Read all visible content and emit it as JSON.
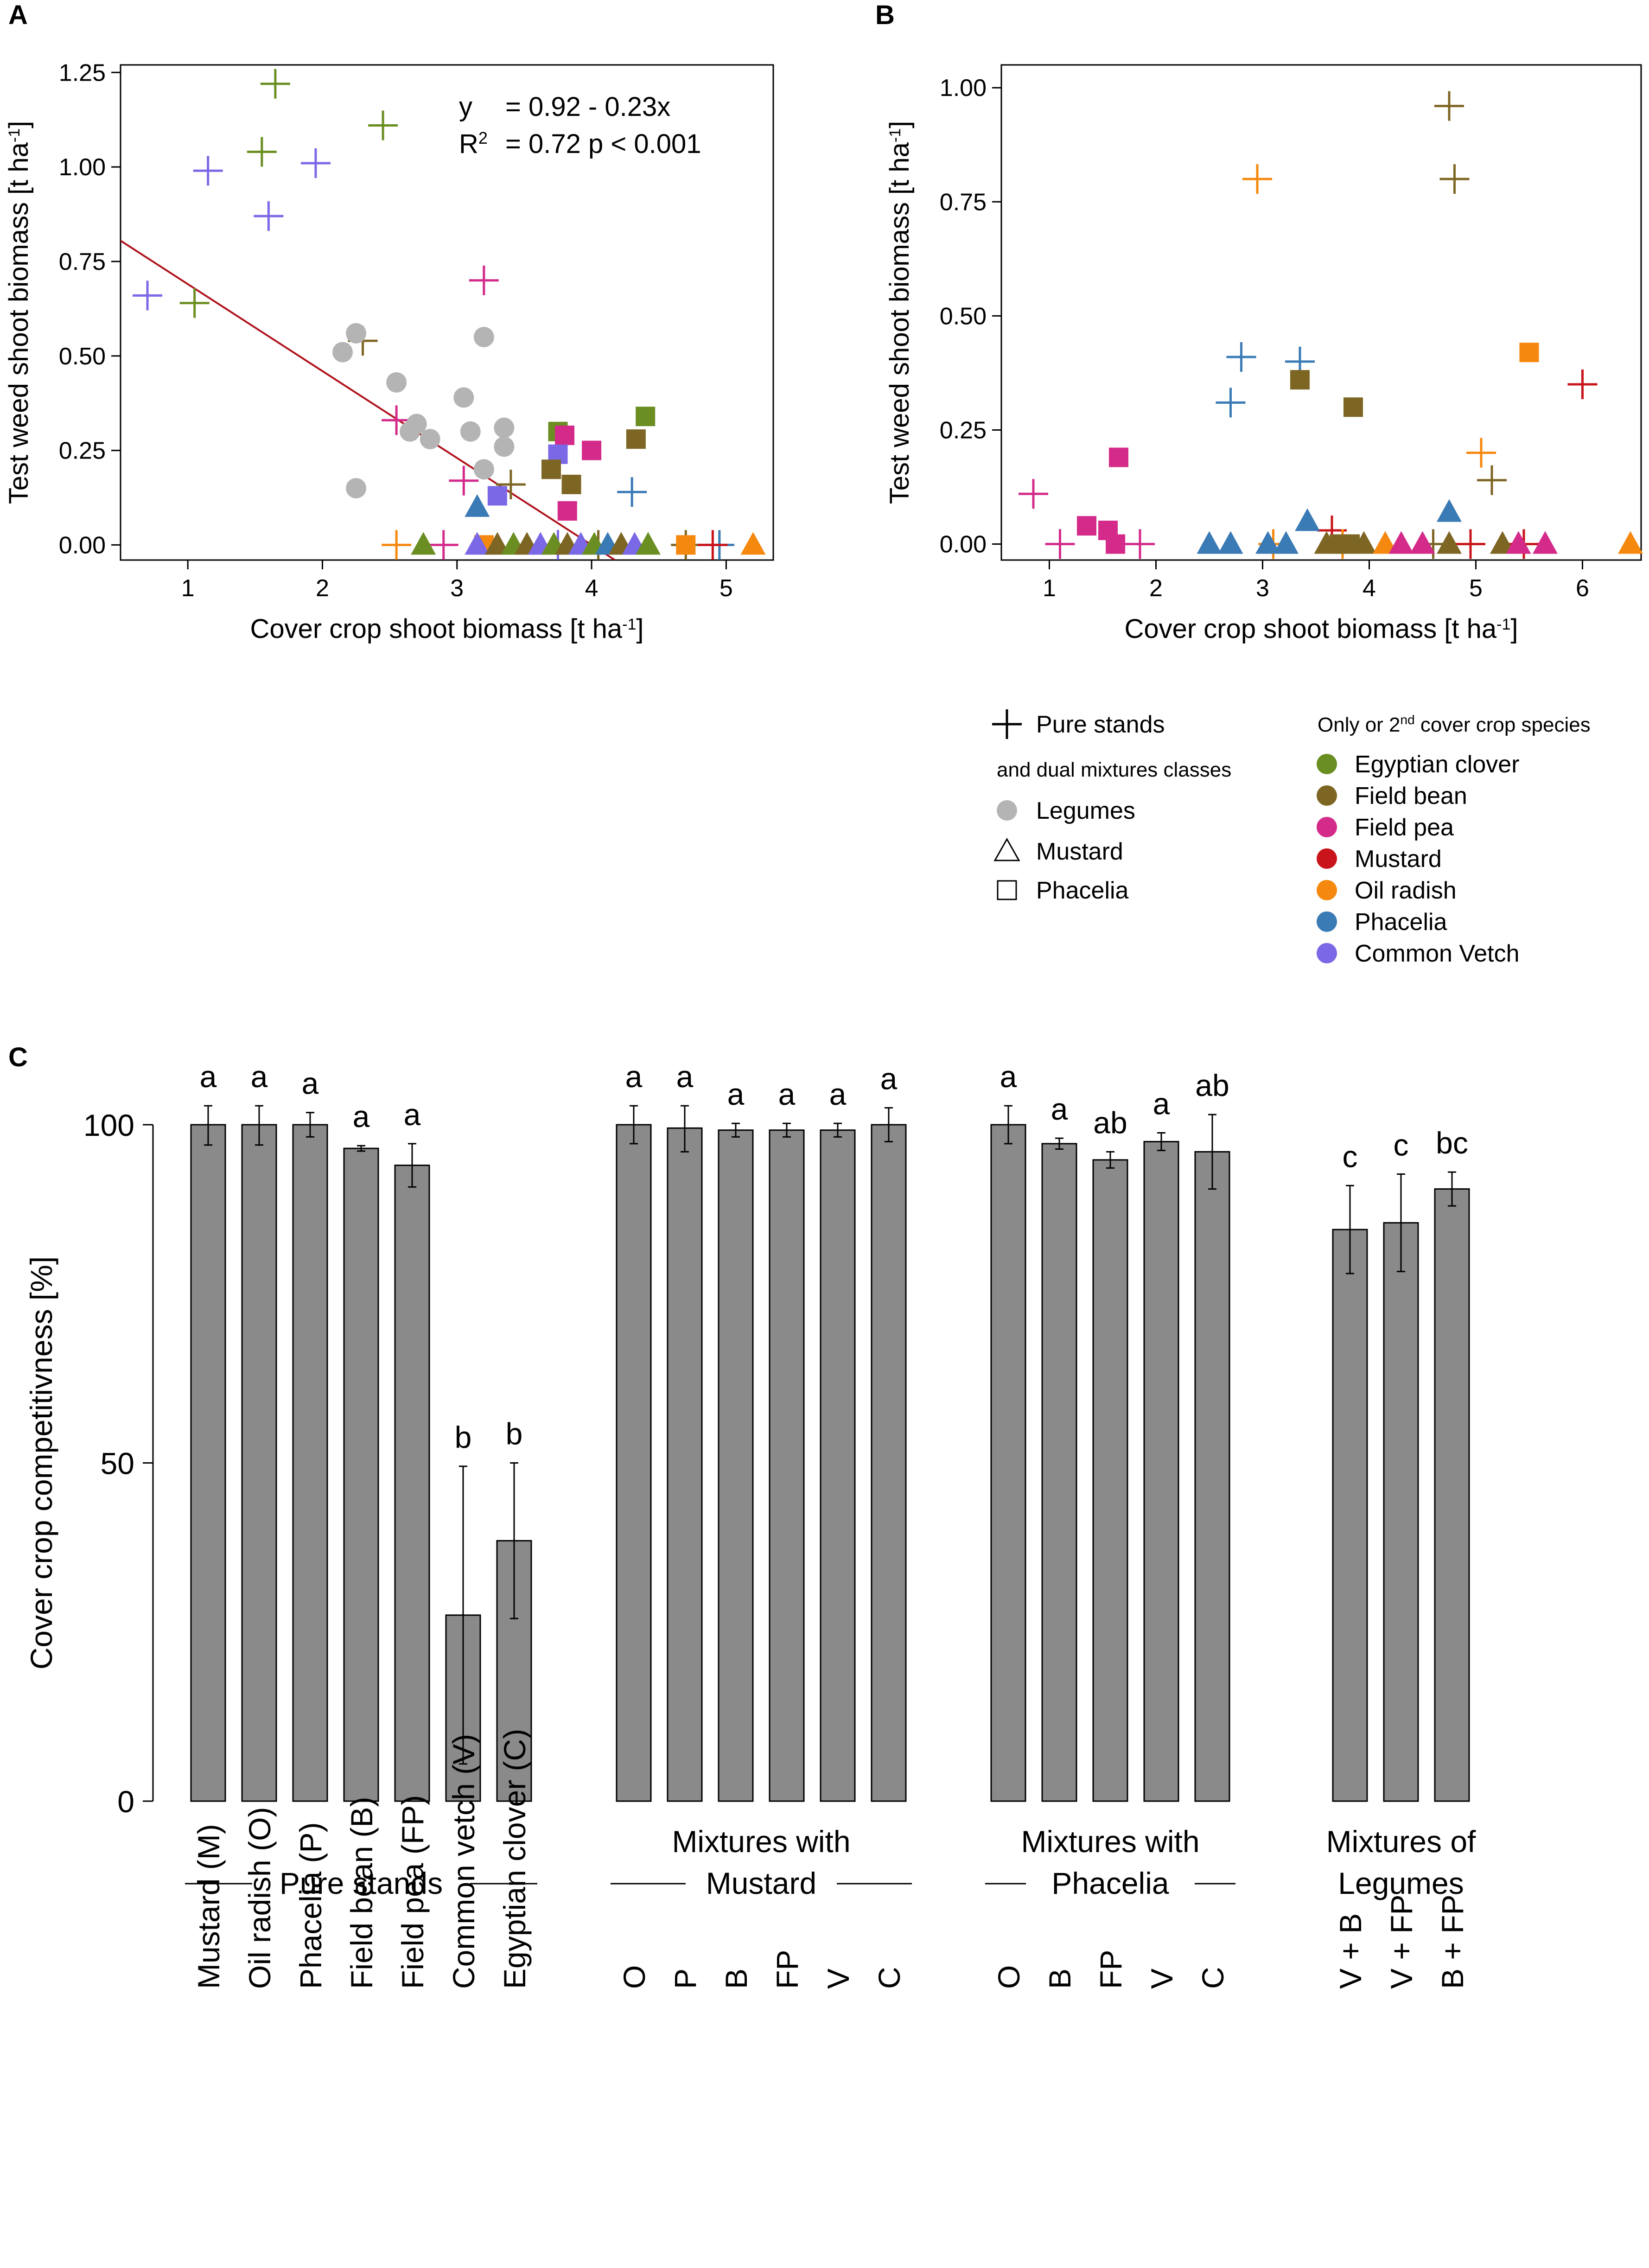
{
  "colors": {
    "Egyptian clover": "#6b8e23",
    "Field bean": "#7d6624",
    "Field pea": "#d42a8a",
    "Mustard": "#c8141a",
    "Oil radish": "#f5880f",
    "Phacelia": "#3a7ab5",
    "Common Vetch": "#7a68e6",
    "Legumes": "#b4b4b4",
    "regression": "#b0141e",
    "bar": "#8a8a8a"
  },
  "legend": {
    "class_items": [
      {
        "symbol": "plus",
        "label": "Pure stands"
      },
      {
        "symbol": "none",
        "label": "and dual mixtures classes"
      },
      {
        "symbol": "circle",
        "label": "Legumes"
      },
      {
        "symbol": "triangle",
        "label": "Mustard"
      },
      {
        "symbol": "square",
        "label": "Phacelia"
      }
    ],
    "species_header": {
      "pre": "Only or 2",
      "sup": "nd",
      "post": " cover crop species"
    },
    "species_items": [
      "Egyptian clover",
      "Field bean",
      "Field pea",
      "Mustard",
      "Oil radish",
      "Phacelia",
      "Common Vetch"
    ]
  },
  "chart_data": [
    {
      "panel": "A",
      "type": "scatter",
      "xlabel": {
        "main": "Cover crop shoot biomass [t ha",
        "sup": "-1",
        "close": "]"
      },
      "ylabel": {
        "main": "Test weed shoot biomass [t ha",
        "sup": "-1",
        "close": "]"
      },
      "xlim": [
        0.5,
        5.35
      ],
      "ylim": [
        -0.04,
        1.27
      ],
      "xticks": [
        1,
        2,
        3,
        4,
        5
      ],
      "yticks": [
        0,
        0.25,
        0.5,
        0.75,
        1,
        1.25
      ],
      "ytick_labels": [
        "0.00",
        "0.25",
        "0.50",
        "0.75",
        "1.00",
        "1.25"
      ],
      "regression": {
        "intercept": 0.92,
        "slope": -0.23,
        "equation_line1": {
          "y": "y",
          "rhs": "= 0.92 - 0.23x"
        },
        "equation_line2": {
          "r": "R",
          "sup": "2",
          "rhs": "= 0.72 p < 0.001"
        }
      },
      "points": [
        {
          "x": 1.65,
          "y": 1.22,
          "shape": "plus",
          "color": "Egyptian clover"
        },
        {
          "x": 1.55,
          "y": 1.04,
          "shape": "plus",
          "color": "Egyptian clover"
        },
        {
          "x": 2.45,
          "y": 1.11,
          "shape": "plus",
          "color": "Egyptian clover"
        },
        {
          "x": 1.05,
          "y": 0.64,
          "shape": "plus",
          "color": "Egyptian clover"
        },
        {
          "x": 1.15,
          "y": 0.99,
          "shape": "plus",
          "color": "Common Vetch"
        },
        {
          "x": 1.95,
          "y": 1.01,
          "shape": "plus",
          "color": "Common Vetch"
        },
        {
          "x": 1.6,
          "y": 0.87,
          "shape": "plus",
          "color": "Common Vetch"
        },
        {
          "x": 0.7,
          "y": 0.66,
          "shape": "plus",
          "color": "Common Vetch"
        },
        {
          "x": 3.2,
          "y": 0.7,
          "shape": "plus",
          "color": "Field pea"
        },
        {
          "x": 2.55,
          "y": 0.33,
          "shape": "plus",
          "color": "Field pea"
        },
        {
          "x": 3.05,
          "y": 0.17,
          "shape": "plus",
          "color": "Field pea"
        },
        {
          "x": 2.3,
          "y": 0.54,
          "shape": "plus",
          "color": "Field bean"
        },
        {
          "x": 3.4,
          "y": 0.16,
          "shape": "plus",
          "color": "Field bean"
        },
        {
          "x": 4.3,
          "y": 0.14,
          "shape": "plus",
          "color": "Phacelia"
        },
        {
          "x": 4.95,
          "y": 0.0,
          "shape": "plus",
          "color": "Phacelia"
        },
        {
          "x": 2.55,
          "y": 0.0,
          "shape": "plus",
          "color": "Oil radish"
        },
        {
          "x": 2.9,
          "y": 0.0,
          "shape": "plus",
          "color": "Field pea"
        },
        {
          "x": 3.75,
          "y": 0.0,
          "shape": "plus",
          "color": "Common Vetch"
        },
        {
          "x": 4.05,
          "y": 0.0,
          "shape": "plus",
          "color": "Field bean"
        },
        {
          "x": 4.7,
          "y": 0.0,
          "shape": "plus",
          "color": "Field bean"
        },
        {
          "x": 4.9,
          "y": 0.0,
          "shape": "plus",
          "color": "Mustard"
        },
        {
          "x": 2.15,
          "y": 0.51,
          "shape": "circle",
          "color": "Legumes"
        },
        {
          "x": 2.25,
          "y": 0.56,
          "shape": "circle",
          "color": "Legumes"
        },
        {
          "x": 2.25,
          "y": 0.15,
          "shape": "circle",
          "color": "Legumes"
        },
        {
          "x": 2.55,
          "y": 0.43,
          "shape": "circle",
          "color": "Legumes"
        },
        {
          "x": 2.65,
          "y": 0.3,
          "shape": "circle",
          "color": "Legumes"
        },
        {
          "x": 2.7,
          "y": 0.32,
          "shape": "circle",
          "color": "Legumes"
        },
        {
          "x": 2.8,
          "y": 0.28,
          "shape": "circle",
          "color": "Legumes"
        },
        {
          "x": 3.05,
          "y": 0.39,
          "shape": "circle",
          "color": "Legumes"
        },
        {
          "x": 3.1,
          "y": 0.3,
          "shape": "circle",
          "color": "Legumes"
        },
        {
          "x": 3.2,
          "y": 0.55,
          "shape": "circle",
          "color": "Legumes"
        },
        {
          "x": 3.2,
          "y": 0.2,
          "shape": "circle",
          "color": "Legumes"
        },
        {
          "x": 3.35,
          "y": 0.31,
          "shape": "circle",
          "color": "Legumes"
        },
        {
          "x": 3.35,
          "y": 0.26,
          "shape": "circle",
          "color": "Legumes"
        },
        {
          "x": 3.75,
          "y": 0.3,
          "shape": "square",
          "color": "Egyptian clover"
        },
        {
          "x": 4.4,
          "y": 0.34,
          "shape": "square",
          "color": "Egyptian clover"
        },
        {
          "x": 3.8,
          "y": 0.29,
          "shape": "square",
          "color": "Field pea"
        },
        {
          "x": 4.0,
          "y": 0.25,
          "shape": "square",
          "color": "Field pea"
        },
        {
          "x": 3.82,
          "y": 0.09,
          "shape": "square",
          "color": "Field pea"
        },
        {
          "x": 3.75,
          "y": 0.24,
          "shape": "square",
          "color": "Common Vetch"
        },
        {
          "x": 3.3,
          "y": 0.13,
          "shape": "square",
          "color": "Common Vetch"
        },
        {
          "x": 4.33,
          "y": 0.28,
          "shape": "square",
          "color": "Field bean"
        },
        {
          "x": 3.7,
          "y": 0.2,
          "shape": "square",
          "color": "Field bean"
        },
        {
          "x": 3.85,
          "y": 0.16,
          "shape": "square",
          "color": "Field bean"
        },
        {
          "x": 3.2,
          "y": 0.0,
          "shape": "square",
          "color": "Oil radish"
        },
        {
          "x": 4.7,
          "y": 0.0,
          "shape": "square",
          "color": "Oil radish"
        },
        {
          "x": 3.15,
          "y": 0.1,
          "shape": "triangle",
          "color": "Phacelia"
        },
        {
          "x": 2.75,
          "y": 0.0,
          "shape": "triangle",
          "color": "Egyptian clover"
        },
        {
          "x": 3.15,
          "y": 0.0,
          "shape": "triangle",
          "color": "Common Vetch"
        },
        {
          "x": 3.3,
          "y": 0.0,
          "shape": "triangle",
          "color": "Field bean"
        },
        {
          "x": 3.42,
          "y": 0.0,
          "shape": "triangle",
          "color": "Egyptian clover"
        },
        {
          "x": 3.52,
          "y": 0.0,
          "shape": "triangle",
          "color": "Field bean"
        },
        {
          "x": 3.62,
          "y": 0.0,
          "shape": "triangle",
          "color": "Common Vetch"
        },
        {
          "x": 3.72,
          "y": 0.0,
          "shape": "triangle",
          "color": "Egyptian clover"
        },
        {
          "x": 3.82,
          "y": 0.0,
          "shape": "triangle",
          "color": "Field bean"
        },
        {
          "x": 3.92,
          "y": 0.0,
          "shape": "triangle",
          "color": "Common Vetch"
        },
        {
          "x": 4.02,
          "y": 0.0,
          "shape": "triangle",
          "color": "Egyptian clover"
        },
        {
          "x": 4.12,
          "y": 0.0,
          "shape": "triangle",
          "color": "Phacelia"
        },
        {
          "x": 4.22,
          "y": 0.0,
          "shape": "triangle",
          "color": "Field bean"
        },
        {
          "x": 4.32,
          "y": 0.0,
          "shape": "triangle",
          "color": "Common Vetch"
        },
        {
          "x": 4.42,
          "y": 0.0,
          "shape": "triangle",
          "color": "Egyptian clover"
        },
        {
          "x": 5.2,
          "y": 0.0,
          "shape": "triangle",
          "color": "Oil radish"
        }
      ]
    },
    {
      "panel": "B",
      "type": "scatter",
      "xlabel": {
        "main": "Cover crop shoot biomass [t ha",
        "sup": "-1",
        "close": "]"
      },
      "ylabel": {
        "main": "Test weed shoot biomass [t ha",
        "sup": "-1",
        "close": "]"
      },
      "xlim": [
        0.55,
        6.55
      ],
      "ylim": [
        -0.035,
        1.05
      ],
      "xticks": [
        1,
        2,
        3,
        4,
        5,
        6
      ],
      "yticks": [
        0,
        0.25,
        0.5,
        0.75,
        1
      ],
      "ytick_labels": [
        "0.00",
        "0.25",
        "0.50",
        "0.75",
        "1.00"
      ],
      "points": [
        {
          "x": 4.75,
          "y": 0.96,
          "shape": "plus",
          "color": "Field bean"
        },
        {
          "x": 4.8,
          "y": 0.8,
          "shape": "plus",
          "color": "Field bean"
        },
        {
          "x": 2.95,
          "y": 0.8,
          "shape": "plus",
          "color": "Oil radish"
        },
        {
          "x": 2.8,
          "y": 0.41,
          "shape": "plus",
          "color": "Phacelia"
        },
        {
          "x": 3.35,
          "y": 0.4,
          "shape": "plus",
          "color": "Phacelia"
        },
        {
          "x": 2.7,
          "y": 0.31,
          "shape": "plus",
          "color": "Phacelia"
        },
        {
          "x": 6.0,
          "y": 0.35,
          "shape": "plus",
          "color": "Mustard"
        },
        {
          "x": 5.05,
          "y": 0.2,
          "shape": "plus",
          "color": "Oil radish"
        },
        {
          "x": 5.15,
          "y": 0.14,
          "shape": "plus",
          "color": "Field bean"
        },
        {
          "x": 0.85,
          "y": 0.11,
          "shape": "plus",
          "color": "Field pea"
        },
        {
          "x": 1.1,
          "y": 0.0,
          "shape": "plus",
          "color": "Field pea"
        },
        {
          "x": 1.85,
          "y": 0.0,
          "shape": "plus",
          "color": "Field pea"
        },
        {
          "x": 3.65,
          "y": 0.03,
          "shape": "plus",
          "color": "Mustard"
        },
        {
          "x": 3.1,
          "y": 0.0,
          "shape": "plus",
          "color": "Oil radish"
        },
        {
          "x": 3.75,
          "y": 0.0,
          "shape": "plus",
          "color": "Oil radish"
        },
        {
          "x": 4.6,
          "y": 0.0,
          "shape": "plus",
          "color": "Field bean"
        },
        {
          "x": 4.95,
          "y": 0.0,
          "shape": "plus",
          "color": "Mustard"
        },
        {
          "x": 5.45,
          "y": 0.0,
          "shape": "plus",
          "color": "Mustard"
        },
        {
          "x": 3.35,
          "y": 0.36,
          "shape": "square",
          "color": "Field bean"
        },
        {
          "x": 3.85,
          "y": 0.3,
          "shape": "square",
          "color": "Field bean"
        },
        {
          "x": 5.5,
          "y": 0.42,
          "shape": "square",
          "color": "Oil radish"
        },
        {
          "x": 1.65,
          "y": 0.19,
          "shape": "square",
          "color": "Field pea"
        },
        {
          "x": 1.35,
          "y": 0.04,
          "shape": "square",
          "color": "Field pea"
        },
        {
          "x": 1.55,
          "y": 0.03,
          "shape": "square",
          "color": "Field pea"
        },
        {
          "x": 1.62,
          "y": 0.0,
          "shape": "square",
          "color": "Field pea"
        },
        {
          "x": 3.72,
          "y": 0.0,
          "shape": "square",
          "color": "Field bean"
        },
        {
          "x": 3.82,
          "y": 0.0,
          "shape": "square",
          "color": "Field bean"
        },
        {
          "x": 4.75,
          "y": 0.07,
          "shape": "triangle",
          "color": "Phacelia"
        },
        {
          "x": 3.42,
          "y": 0.05,
          "shape": "triangle",
          "color": "Phacelia"
        },
        {
          "x": 2.5,
          "y": 0.0,
          "shape": "triangle",
          "color": "Phacelia"
        },
        {
          "x": 2.7,
          "y": 0.0,
          "shape": "triangle",
          "color": "Phacelia"
        },
        {
          "x": 3.05,
          "y": 0.0,
          "shape": "triangle",
          "color": "Phacelia"
        },
        {
          "x": 3.22,
          "y": 0.0,
          "shape": "triangle",
          "color": "Phacelia"
        },
        {
          "x": 3.6,
          "y": 0.0,
          "shape": "triangle",
          "color": "Field bean"
        },
        {
          "x": 3.95,
          "y": 0.0,
          "shape": "triangle",
          "color": "Field bean"
        },
        {
          "x": 4.15,
          "y": 0.0,
          "shape": "triangle",
          "color": "Oil radish"
        },
        {
          "x": 4.3,
          "y": 0.0,
          "shape": "triangle",
          "color": "Field pea"
        },
        {
          "x": 4.5,
          "y": 0.0,
          "shape": "triangle",
          "color": "Field pea"
        },
        {
          "x": 4.75,
          "y": 0.0,
          "shape": "triangle",
          "color": "Field bean"
        },
        {
          "x": 5.25,
          "y": 0.0,
          "shape": "triangle",
          "color": "Field bean"
        },
        {
          "x": 5.4,
          "y": 0.0,
          "shape": "triangle",
          "color": "Field pea"
        },
        {
          "x": 5.65,
          "y": 0.0,
          "shape": "triangle",
          "color": "Field pea"
        },
        {
          "x": 6.45,
          "y": 0.0,
          "shape": "triangle",
          "color": "Oil radish"
        }
      ]
    },
    {
      "panel": "C",
      "type": "bar",
      "ylabel": "Cover crop competitivness [%]",
      "ylim": [
        0,
        100
      ],
      "yticks": [
        0,
        50,
        100
      ],
      "groups": [
        {
          "label_lines": [
            "Pure stands"
          ],
          "bars": [
            {
              "category": "Mustard (M)",
              "value": 100.0,
              "err": 3.0,
              "letter": "a"
            },
            {
              "category": "Oil radish (O)",
              "value": 100.0,
              "err": 3.0,
              "letter": "a"
            },
            {
              "category": "Phacelia (P)",
              "value": 100.0,
              "err": 1.8,
              "letter": "a"
            },
            {
              "category": "Field bean (B)",
              "value": 96.5,
              "err": 0.4,
              "letter": "a"
            },
            {
              "category": "Field pea (FP)",
              "value": 94.0,
              "err": 3.2,
              "letter": "a"
            },
            {
              "category": "Common vetch (V)",
              "value": 27.5,
              "err": 22.0,
              "letter": "b"
            },
            {
              "category": "Egyptian clover (C)",
              "value": 38.5,
              "err": 11.5,
              "letter": "b"
            }
          ]
        },
        {
          "label_lines": [
            "Mixtures with",
            "Mustard"
          ],
          "bars": [
            {
              "category": "O",
              "value": 100.0,
              "err": 2.8,
              "letter": "a"
            },
            {
              "category": "P",
              "value": 99.5,
              "err": 3.5,
              "letter": "a"
            },
            {
              "category": "B",
              "value": 99.2,
              "err": 1.0,
              "letter": "a"
            },
            {
              "category": "FP",
              "value": 99.2,
              "err": 1.0,
              "letter": "a"
            },
            {
              "category": "V",
              "value": 99.2,
              "err": 1.0,
              "letter": "a"
            },
            {
              "category": "C",
              "value": 100.0,
              "err": 2.5,
              "letter": "a"
            }
          ]
        },
        {
          "label_lines": [
            "Mixtures with",
            "Phacelia"
          ],
          "bars": [
            {
              "category": "O",
              "value": 100.0,
              "err": 2.8,
              "letter": "a"
            },
            {
              "category": "B",
              "value": 97.2,
              "err": 0.8,
              "letter": "a"
            },
            {
              "category": "FP",
              "value": 94.8,
              "err": 1.2,
              "letter": "ab"
            },
            {
              "category": "V",
              "value": 97.5,
              "err": 1.3,
              "letter": "a"
            },
            {
              "category": "C",
              "value": 96.0,
              "err": 5.5,
              "letter": "ab"
            }
          ]
        },
        {
          "label_lines": [
            "Mixtures of",
            "Legumes"
          ],
          "bars": [
            {
              "category": "V + B",
              "value": 84.5,
              "err": 6.5,
              "letter": "c"
            },
            {
              "category": "V + FP",
              "value": 85.5,
              "err": 7.2,
              "letter": "c"
            },
            {
              "category": "B + FP",
              "value": 90.5,
              "err": 2.5,
              "letter": "bc"
            }
          ]
        }
      ]
    }
  ]
}
